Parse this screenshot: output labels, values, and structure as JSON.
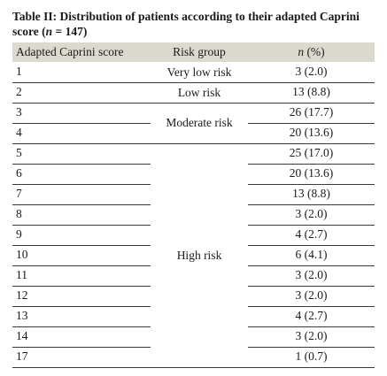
{
  "table": {
    "caption_prefix": "Table II: Distribution of patients according to their adapted Caprini score (",
    "caption_n": "n",
    "caption_suffix": " = 147)",
    "headers": {
      "score": "Adapted Caprini score",
      "risk": "Risk group",
      "n_italic": "n",
      "n_rest": " (%)"
    },
    "groups": [
      {
        "label": "Very low risk"
      },
      {
        "label": "Low risk"
      },
      {
        "label": "Moderate risk"
      },
      {
        "label": "High risk"
      }
    ],
    "rows": [
      {
        "score": "1",
        "value": "3 (2.0)"
      },
      {
        "score": "2",
        "value": "13 (8.8)"
      },
      {
        "score": "3",
        "value": "26 (17.7)"
      },
      {
        "score": "4",
        "value": "20 (13.6)"
      },
      {
        "score": "5",
        "value": "25 (17.0)"
      },
      {
        "score": "6",
        "value": "20 (13.6)"
      },
      {
        "score": "7",
        "value": "13 (8.8)"
      },
      {
        "score": "8",
        "value": "3 (2.0)"
      },
      {
        "score": "9",
        "value": "4 (2.7)"
      },
      {
        "score": "10",
        "value": "6 (4.1)"
      },
      {
        "score": "11",
        "value": "3 (2.0)"
      },
      {
        "score": "12",
        "value": "3 (2.0)"
      },
      {
        "score": "13",
        "value": "4 (2.7)"
      },
      {
        "score": "14",
        "value": "3 (2.0)"
      },
      {
        "score": "17",
        "value": "1 (0.7)"
      }
    ]
  }
}
